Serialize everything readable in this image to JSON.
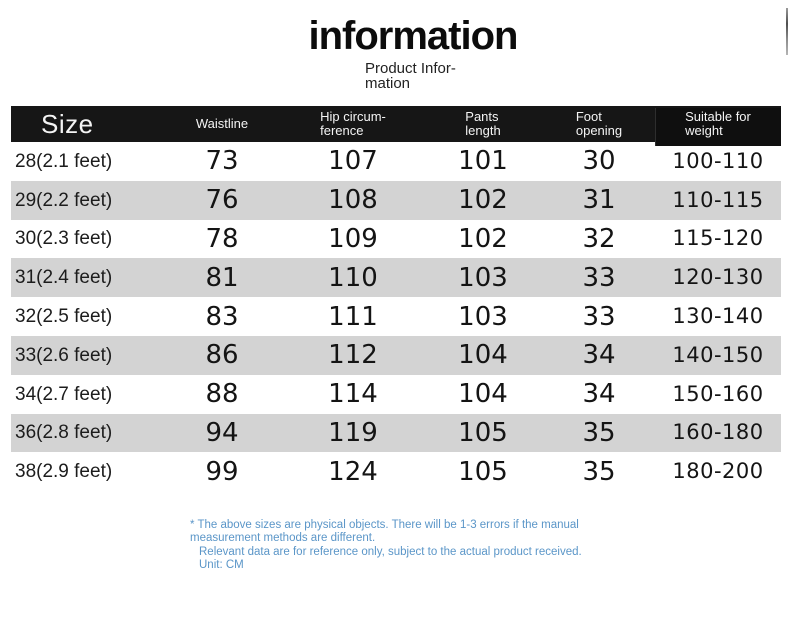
{
  "page": {
    "title": "information",
    "subtitle": "Product Infor-\nmation"
  },
  "table": {
    "columns": [
      {
        "key": "size",
        "label": "Size"
      },
      {
        "key": "waistline",
        "label": "Waistline"
      },
      {
        "key": "hip",
        "label": "Hip circum-\nference"
      },
      {
        "key": "pants_length",
        "label": "Pants\nlength"
      },
      {
        "key": "foot_opening",
        "label": "Foot\nopening"
      },
      {
        "key": "weight",
        "label": "Suitable for\nweight"
      }
    ],
    "rows": [
      {
        "size": "28(2.1 feet)",
        "waistline": "73",
        "hip": "107",
        "pants_length": "101",
        "foot_opening": "30",
        "weight": "100-110"
      },
      {
        "size": "29(2.2 feet)",
        "waistline": "76",
        "hip": "108",
        "pants_length": "102",
        "foot_opening": "31",
        "weight": "110-115"
      },
      {
        "size": "30(2.3 feet)",
        "waistline": "78",
        "hip": "109",
        "pants_length": "102",
        "foot_opening": "32",
        "weight": "115-120"
      },
      {
        "size": "31(2.4 feet)",
        "waistline": "81",
        "hip": "110",
        "pants_length": "103",
        "foot_opening": "33",
        "weight": "120-130"
      },
      {
        "size": "32(2.5 feet)",
        "waistline": "83",
        "hip": "111",
        "pants_length": "103",
        "foot_opening": "33",
        "weight": "130-140"
      },
      {
        "size": "33(2.6 feet)",
        "waistline": "86",
        "hip": "112",
        "pants_length": "104",
        "foot_opening": "34",
        "weight": "140-150"
      },
      {
        "size": "34(2.7 feet)",
        "waistline": "88",
        "hip": "114",
        "pants_length": "104",
        "foot_opening": "34",
        "weight": "150-160"
      },
      {
        "size": "36(2.8 feet)",
        "waistline": "94",
        "hip": "119",
        "pants_length": "105",
        "foot_opening": "35",
        "weight": "160-180"
      },
      {
        "size": "38(2.9 feet)",
        "waistline": "99",
        "hip": "124",
        "pants_length": "105",
        "foot_opening": "35",
        "weight": "180-200"
      }
    ]
  },
  "notes": {
    "lines": [
      "* The above sizes are physical objects. There will be 1-3 errors if the manual",
      "measurement methods are different.",
      "Relevant data are for reference only, subject to the actual product received.",
      "Unit: CM"
    ]
  },
  "colors": {
    "header_bg": "#161616",
    "row_stripe": "#d3d3d3",
    "note_blue": "#5b96c8"
  }
}
